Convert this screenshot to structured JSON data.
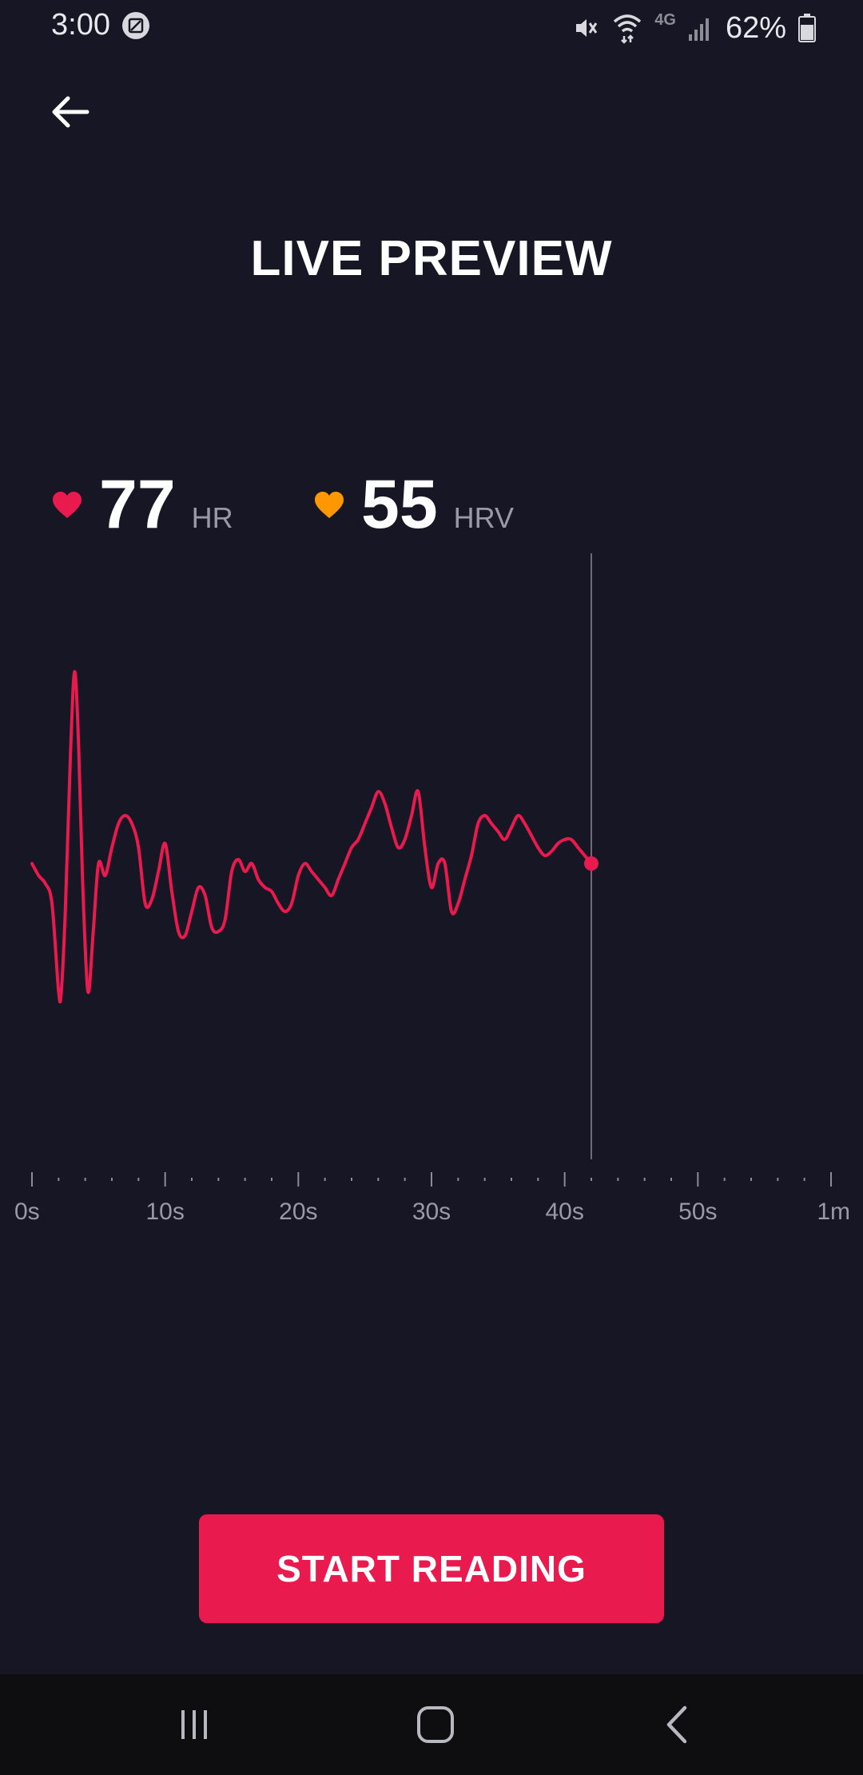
{
  "status_bar": {
    "time": "3:00",
    "network": "4G",
    "battery": "62%",
    "icons": [
      "gallery-icon",
      "mute-icon",
      "wifi-icon",
      "signal-icon",
      "battery-icon"
    ]
  },
  "header": {
    "back_icon": "arrow-left-icon",
    "title": "LIVE PREVIEW"
  },
  "metrics": {
    "hr": {
      "value": "77",
      "unit": "HR",
      "icon": "heart-icon",
      "color": "#e91a4e"
    },
    "hrv": {
      "value": "55",
      "unit": "HRV",
      "icon": "heart-icon",
      "color": "#ff9800"
    }
  },
  "chart_data": {
    "type": "line",
    "x_unit": "seconds",
    "xlim": [
      0,
      60
    ],
    "x_ticks": [
      "0s",
      "10s",
      "20s",
      "30s",
      "40s",
      "50s",
      "1m"
    ],
    "current_time": 42,
    "line_color": "#e91a4e",
    "series": [
      {
        "x": [
          0,
          0.5,
          1.0,
          1.5,
          2.0,
          2.2,
          2.5,
          2.9,
          3.2,
          3.5,
          3.8,
          4.2,
          4.6,
          5.0,
          5.5,
          6.0,
          6.5,
          7.0,
          7.5,
          8.0,
          8.5,
          9.0,
          9.5,
          10.0,
          10.5,
          11.0,
          11.5,
          12.0,
          12.5,
          13.0,
          13.5,
          14.0,
          14.5,
          15.0,
          15.5,
          16.0,
          16.5,
          17.0,
          17.5,
          18.0,
          18.5,
          19.0,
          19.5,
          20.0,
          20.5,
          21.0,
          21.5,
          22.0,
          22.5,
          23.0,
          23.5,
          24.0,
          24.5,
          25.0,
          25.5,
          26.0,
          26.5,
          27.0,
          27.5,
          28.0,
          28.5,
          29.0,
          29.5,
          30.0,
          30.5,
          31.0,
          31.5,
          32.0,
          32.5,
          33.0,
          33.5,
          34.0,
          34.5,
          35.0,
          35.5,
          36.0,
          36.5,
          37.0,
          37.5,
          38.0,
          38.5,
          39.0,
          39.5,
          40.0,
          40.5,
          41.0,
          41.5,
          42.0
        ],
        "y": [
          52,
          49,
          47,
          42,
          20,
          20,
          40,
          80,
          100,
          82,
          48,
          20,
          35,
          52,
          49,
          56,
          62,
          64,
          62,
          56,
          42,
          43,
          50,
          57,
          45,
          35,
          34,
          40,
          46,
          44,
          36,
          35,
          38,
          50,
          53,
          50,
          52,
          48,
          46,
          45,
          42,
          40,
          42,
          49,
          52,
          50,
          48,
          46,
          44,
          48,
          52,
          56,
          58,
          62,
          66,
          70,
          67,
          61,
          56,
          58,
          64,
          70,
          56,
          46,
          52,
          52,
          40,
          42,
          48,
          54,
          62,
          64,
          62,
          60,
          58,
          61,
          64,
          62,
          59,
          56,
          54,
          55,
          57,
          58,
          58,
          56,
          54,
          52
        ]
      }
    ]
  },
  "actions": {
    "start_label": "START READING"
  },
  "nav_bar": {
    "icons": [
      "recents-icon",
      "home-icon",
      "back-icon"
    ]
  }
}
